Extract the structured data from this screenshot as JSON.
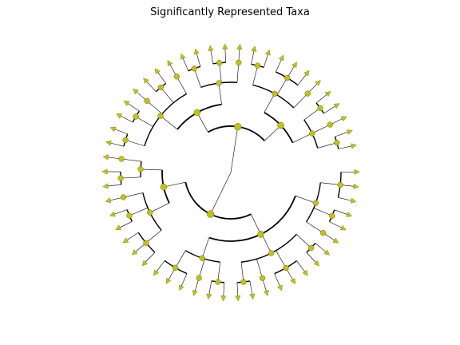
{
  "title": "Significantly Represented Taxa",
  "colors": {
    "background": "#ffffff",
    "node_fill": "#c0c21a",
    "node_stroke": "#6e6e10",
    "edge": "#000000",
    "title_text": "#000000"
  },
  "layout": "radial",
  "node_marker": "circle",
  "leaf_marker": "triangle",
  "tree": {
    "n": [
      {
        "n": [
          {
            "n": [
              {
                "n": [
                  {
                    "n": [
                      {},
                      {},
                      {}
                    ]
                  },
                  {
                    "n": [
                      {},
                      {}
                    ]
                  },
                  {
                    "n": [
                      {}
                    ]
                  }
                ]
              },
              {
                "n": [
                  {
                    "n": [
                      {},
                      {}
                    ]
                  },
                  {
                    "n": [
                      {},
                      {},
                      {}
                    ]
                  },
                  {
                    "n": [
                      {}
                    ]
                  },
                  {
                    "n": [
                      {},
                      {}
                    ]
                  }
                ]
              },
              {
                "n": [
                  {
                    "n": [
                      {},
                      {}
                    ]
                  },
                  {
                    "n": [
                      {}
                    ]
                  },
                  {
                    "n": [
                      {},
                      {},
                      {}
                    ]
                  }
                ]
              }
            ]
          },
          {
            "n": [
              {
                "n": [
                  {
                    "n": [
                      {},
                      {},
                      {}
                    ]
                  },
                  {
                    "n": [
                      {},
                      {}
                    ]
                  },
                  {
                    "n": [
                      {}
                    ]
                  }
                ]
              },
              {
                "n": [
                  {
                    "n": [
                      {},
                      {}
                    ]
                  },
                  {
                    "n": [
                      {}
                    ]
                  }
                ]
              }
            ]
          }
        ]
      },
      {
        "n": [
          {
            "n": [
              {
                "n": [
                  {
                    "n": [
                      {},
                      {}
                    ]
                  },
                  {
                    "n": [
                      {},
                      {}
                    ]
                  },
                  {
                    "n": [
                      {}
                    ]
                  },
                  {
                    "n": [
                      {},
                      {}
                    ]
                  },
                  {
                    "n": [
                      {}
                    ]
                  }
                ]
              },
              {
                "n": [
                  {
                    "n": [
                      {},
                      {}
                    ]
                  },
                  {
                    "n": [
                      {},
                      {}
                    ]
                  },
                  {
                    "n": [
                      {}
                    ]
                  }
                ]
              }
            ]
          },
          {
            "n": [
              {
                "n": [
                  {
                    "n": [
                      {},
                      {}
                    ]
                  },
                  {
                    "n": [
                      {},
                      {},
                      {}
                    ]
                  },
                  {
                    "n": [
                      {}
                    ]
                  }
                ]
              },
              {
                "n": [
                  {
                    "n": [
                      {},
                      {}
                    ]
                  },
                  {
                    "n": [
                      {}
                    ]
                  },
                  {
                    "n": [
                      {},
                      {}
                    ]
                  }
                ]
              }
            ]
          }
        ]
      }
    ]
  }
}
